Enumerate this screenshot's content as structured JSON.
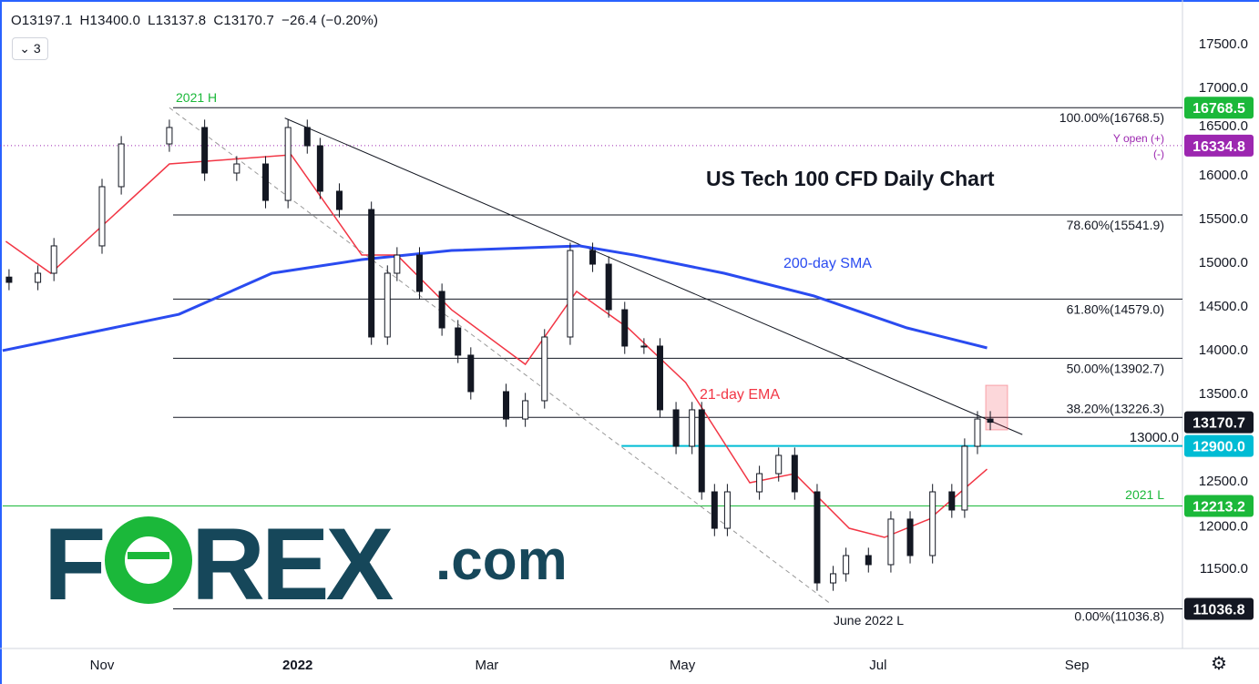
{
  "header": {
    "open": "O13197.1",
    "high": "H13400.0",
    "low": "L13137.8",
    "close": "C13170.7",
    "change": "−26.4 (−0.20%)",
    "collapse_count": "3"
  },
  "title": "US Tech 100 CFD Daily Chart",
  "logo": {
    "text": "FOREX.com"
  },
  "colors": {
    "up": "#131722",
    "down": "#131722",
    "ema": "#f23645",
    "sma": "#2a4bf0",
    "cyan": "#00bcd4",
    "green": "#1bb83a",
    "purple": "#9c27b0"
  },
  "annotations": {
    "sma_label": "200-day SMA",
    "ema_label": "21-day EMA",
    "high_label": "2021 H",
    "low_label": "2021 L",
    "june_low_label": "June 2022 L",
    "y_open": "Y open (+)",
    "y_open_minus": "(-)"
  },
  "chart_data": {
    "type": "candlestick",
    "title": "US Tech 100 CFD Daily Chart",
    "y_axis": {
      "ticks": [
        11000,
        11500,
        12000,
        12500,
        13000,
        13500,
        14000,
        14500,
        15000,
        15500,
        16000,
        16500,
        17000,
        17500
      ],
      "labels": [
        "",
        "11500.0",
        "12000.0",
        "12500.0",
        "13000.0",
        "13500.0",
        "14000.0",
        "14500.0",
        "15000.0",
        "15500.0",
        "16000.0",
        "16500.0",
        "17000.0",
        "17500.0"
      ],
      "position": "right"
    },
    "x_axis": {
      "ticks": [
        {
          "date": "2021-11-01",
          "label": "Nov"
        },
        {
          "date": "2022-01-01",
          "label": "2022"
        },
        {
          "date": "2022-03-01",
          "label": "Mar"
        },
        {
          "date": "2022-05-01",
          "label": "May"
        },
        {
          "date": "2022-07-01",
          "label": "Jul"
        },
        {
          "date": "2022-09-01",
          "label": "Sep"
        }
      ]
    },
    "closes": [
      [
        "2021-10-03",
        14771
      ],
      [
        "2021-10-12",
        14875
      ],
      [
        "2021-10-17",
        15188
      ],
      [
        "2021-11-01",
        15865
      ],
      [
        "2021-11-07",
        16354
      ],
      [
        "2021-11-22",
        16542
      ],
      [
        "2021-12-03",
        16021
      ],
      [
        "2021-12-13",
        16125
      ],
      [
        "2021-12-22",
        15708
      ],
      [
        "2021-12-29",
        16542
      ],
      [
        "2022-01-04",
        16333
      ],
      [
        "2022-01-08",
        15813
      ],
      [
        "2022-01-14",
        15604
      ],
      [
        "2022-01-24",
        14146
      ],
      [
        "2022-01-29",
        14875
      ],
      [
        "2022-02-01",
        15083
      ],
      [
        "2022-02-08",
        14667
      ],
      [
        "2022-02-15",
        14250
      ],
      [
        "2022-02-20",
        13938
      ],
      [
        "2022-02-24",
        13521
      ],
      [
        "2022-03-07",
        13208
      ],
      [
        "2022-03-13",
        13417
      ],
      [
        "2022-03-19",
        14146
      ],
      [
        "2022-03-27",
        15135
      ],
      [
        "2022-04-03",
        14979
      ],
      [
        "2022-04-08",
        14458
      ],
      [
        "2022-04-13",
        14042
      ],
      [
        "2022-04-19",
        14042
      ],
      [
        "2022-04-24",
        13313
      ],
      [
        "2022-04-29",
        12896
      ],
      [
        "2022-05-04",
        13313
      ],
      [
        "2022-05-07",
        12375
      ],
      [
        "2022-05-11",
        11958
      ],
      [
        "2022-05-15",
        12375
      ],
      [
        "2022-05-25",
        12583
      ],
      [
        "2022-05-31",
        12792
      ],
      [
        "2022-06-05",
        12375
      ],
      [
        "2022-06-12",
        11333
      ],
      [
        "2022-06-17",
        11438
      ],
      [
        "2022-06-21",
        11646
      ],
      [
        "2022-06-28",
        11542
      ],
      [
        "2022-07-05",
        12063
      ],
      [
        "2022-07-11",
        11646
      ],
      [
        "2022-07-18",
        12375
      ],
      [
        "2022-07-24",
        12167
      ],
      [
        "2022-07-28",
        12896
      ],
      [
        "2022-08-01",
        13208
      ],
      [
        "2022-08-05",
        13170.7
      ]
    ],
    "sma200": [
      [
        "2021-10-01",
        13990
      ],
      [
        "2021-11-25",
        14406
      ],
      [
        "2021-12-24",
        14875
      ],
      [
        "2022-01-21",
        15031
      ],
      [
        "2022-02-18",
        15135
      ],
      [
        "2022-03-30",
        15188
      ],
      [
        "2022-04-16",
        15083
      ],
      [
        "2022-05-14",
        14875
      ],
      [
        "2022-06-11",
        14615
      ],
      [
        "2022-07-10",
        14250
      ],
      [
        "2022-08-04",
        14021
      ]
    ],
    "ema21": [
      [
        "2021-10-02",
        15240
      ],
      [
        "2021-10-16",
        14875
      ],
      [
        "2021-11-22",
        16125
      ],
      [
        "2021-12-30",
        16229
      ],
      [
        "2022-01-21",
        15083
      ],
      [
        "2022-02-01",
        15083
      ],
      [
        "2022-02-18",
        14458
      ],
      [
        "2022-03-13",
        13833
      ],
      [
        "2022-03-29",
        14667
      ],
      [
        "2022-04-14",
        14250
      ],
      [
        "2022-05-02",
        13625
      ],
      [
        "2022-05-22",
        12479
      ],
      [
        "2022-06-05",
        12583
      ],
      [
        "2022-06-22",
        11958
      ],
      [
        "2022-07-03",
        11854
      ],
      [
        "2022-07-17",
        12063
      ],
      [
        "2022-08-04",
        12635
      ]
    ],
    "fib_levels": [
      {
        "pct": "100.00%",
        "value": 16768.5,
        "label": "100.00%(16768.5)"
      },
      {
        "pct": "78.60%",
        "value": 15541.9,
        "label": "78.60%(15541.9)"
      },
      {
        "pct": "61.80%",
        "value": 14579.0,
        "label": "61.80%(14579.0)"
      },
      {
        "pct": "50.00%",
        "value": 13902.7,
        "label": "50.00%(13902.7)"
      },
      {
        "pct": "38.20%",
        "value": 13226.3,
        "label": "38.20%(13226.3)"
      },
      {
        "pct": "0.00%",
        "value": 11036.8,
        "label": "0.00%(11036.8)"
      }
    ],
    "price_tags": [
      {
        "value": 16768.5,
        "label": "16768.5",
        "color": "#1bb83a"
      },
      {
        "value": 16334.8,
        "label": "16334.8",
        "color": "#9c27b0"
      },
      {
        "value": 13170.7,
        "label": "13170.7",
        "color": "#131722"
      },
      {
        "value": 12900.0,
        "label": "12900.0",
        "color": "#00bcd4"
      },
      {
        "value": 12213.2,
        "label": "12213.2",
        "color": "#1bb83a"
      },
      {
        "value": 11036.8,
        "label": "11036.8",
        "color": "#131722"
      }
    ],
    "horizontal_lines": [
      {
        "value": 12900,
        "from": "2022-04-12",
        "color": "#00bcd4"
      },
      {
        "value": 12213.2,
        "from": "2021-10-01",
        "color": "#1bb83a"
      }
    ],
    "trendlines": [
      {
        "from": [
          "2021-12-28",
          16650
        ],
        "to": [
          "2022-08-15",
          13030
        ],
        "style": "solid"
      },
      {
        "from": [
          "2021-11-22",
          16768.5
        ],
        "to": [
          "2022-06-16",
          11100
        ],
        "style": "dashed"
      }
    ],
    "y_open": 16334.8
  }
}
